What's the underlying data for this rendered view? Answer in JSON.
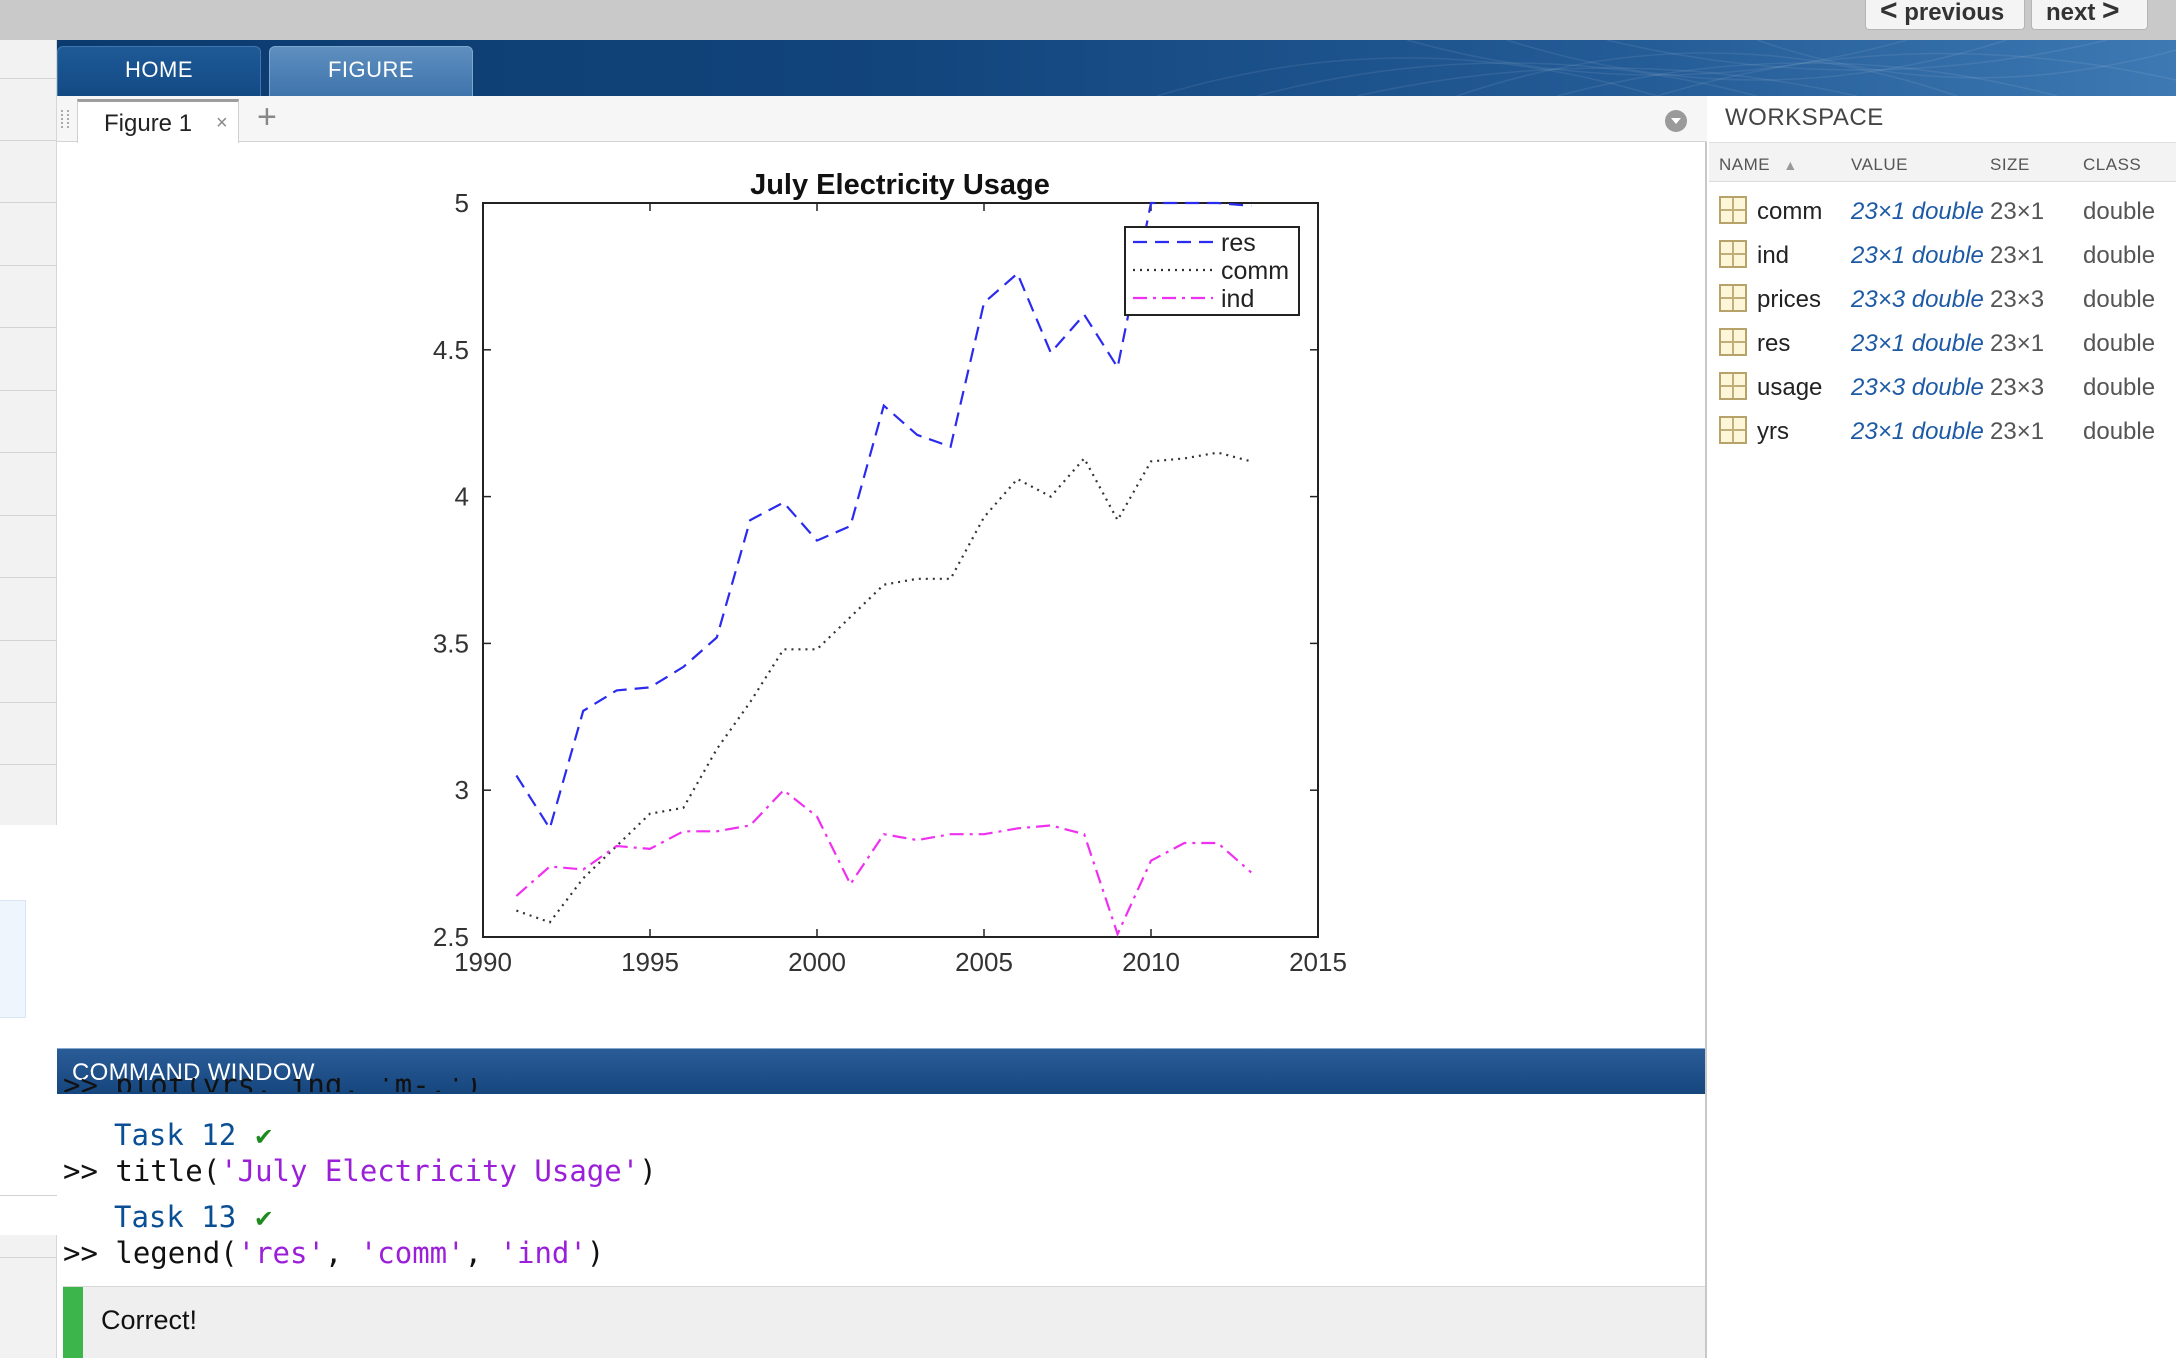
{
  "nav": {
    "previous_label": "previous",
    "next_label": "next"
  },
  "ribbon": {
    "tabs": [
      {
        "label": "HOME"
      },
      {
        "label": "FIGURE"
      }
    ]
  },
  "figure_tab": {
    "label": "Figure 1",
    "close_glyph": "×",
    "add_glyph": "+"
  },
  "chart_data": {
    "type": "line",
    "title": "July Electricity Usage",
    "xlabel": "",
    "ylabel": "",
    "xlim": [
      1990,
      2015
    ],
    "ylim": [
      2.5,
      5
    ],
    "x_ticks": [
      1990,
      1995,
      2000,
      2005,
      2010,
      2015
    ],
    "y_ticks": [
      2.5,
      3,
      3.5,
      4,
      4.5,
      5
    ],
    "y_tick_labels": [
      "2.5",
      "3",
      "3.5",
      "4",
      "4.5",
      "5"
    ],
    "legend_position": "top-right",
    "grid": false,
    "x": [
      1991,
      1992,
      1993,
      1994,
      1995,
      1996,
      1997,
      1998,
      1999,
      2000,
      2001,
      2002,
      2003,
      2004,
      2005,
      2006,
      2007,
      2008,
      2009,
      2010,
      2011,
      2012,
      2013
    ],
    "series": [
      {
        "name": "res",
        "style": "dashed",
        "color": "#2b2bf0",
        "values": [
          3.05,
          2.87,
          3.27,
          3.34,
          3.35,
          3.42,
          3.52,
          3.92,
          3.98,
          3.85,
          3.9,
          4.31,
          4.21,
          4.17,
          4.66,
          4.76,
          4.49,
          4.62,
          4.44,
          5.0,
          5.0,
          5.0,
          4.99
        ]
      },
      {
        "name": "comm",
        "style": "dotted",
        "color": "#333333",
        "values": [
          2.59,
          2.55,
          2.7,
          2.81,
          2.92,
          2.94,
          3.14,
          3.3,
          3.48,
          3.48,
          3.59,
          3.7,
          3.72,
          3.72,
          3.93,
          4.06,
          4.0,
          4.13,
          3.92,
          4.12,
          4.13,
          4.15,
          4.12
        ]
      },
      {
        "name": "ind",
        "style": "dashdot",
        "color": "#f030f0",
        "values": [
          2.64,
          2.74,
          2.73,
          2.81,
          2.8,
          2.86,
          2.86,
          2.88,
          3.0,
          2.91,
          2.68,
          2.85,
          2.83,
          2.85,
          2.85,
          2.87,
          2.88,
          2.85,
          2.51,
          2.76,
          2.82,
          2.82,
          2.72
        ]
      }
    ]
  },
  "workspace": {
    "title": "WORKSPACE",
    "headers": {
      "name": "NAME",
      "value": "VALUE",
      "size": "SIZE",
      "class": "CLASS"
    },
    "sort_glyph": "▲",
    "rows": [
      {
        "name": "comm",
        "value": "23×1 double",
        "size": "23×1",
        "class": "double"
      },
      {
        "name": "ind",
        "value": "23×1 double",
        "size": "23×1",
        "class": "double"
      },
      {
        "name": "prices",
        "value": "23×3 double",
        "size": "23×3",
        "class": "double"
      },
      {
        "name": "res",
        "value": "23×1 double",
        "size": "23×1",
        "class": "double"
      },
      {
        "name": "usage",
        "value": "23×3 double",
        "size": "23×3",
        "class": "double"
      },
      {
        "name": "yrs",
        "value": "23×1 double",
        "size": "23×1",
        "class": "double"
      }
    ]
  },
  "command_window": {
    "title": "COMMAND WINDOW",
    "cut_line": ">> plot(yrs, ind, 'm-.')",
    "prompt": ">> ",
    "check_glyph": "✔",
    "task12": "Task 12",
    "line1_func": "title(",
    "line1_str": "'July Electricity Usage'",
    "line1_end": ")",
    "task13": "Task 13",
    "line2_func": "legend(",
    "line2_s1": "'res'",
    "line2_s2": "'comm'",
    "line2_s3": "'ind'",
    "comma": ", ",
    "line2_end": ")",
    "feedback": "Correct!"
  }
}
